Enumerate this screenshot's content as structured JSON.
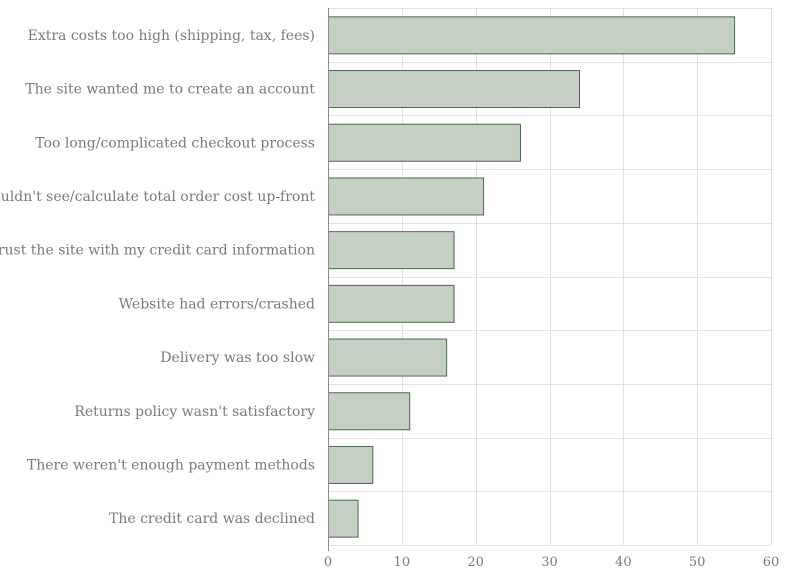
{
  "chart_data": {
    "type": "bar",
    "orientation": "horizontal",
    "categories": [
      "Extra costs too high (shipping, tax, fees)",
      "The site wanted me to create an account",
      "Too long/complicated checkout process",
      "I couldn't see/calculate total order cost up-front",
      "I didn't trust the site with my credit card information",
      "Website had errors/crashed",
      "Delivery was too slow",
      "Returns policy wasn't satisfactory",
      "There weren't enough payment methods",
      "The credit card was declined"
    ],
    "values": [
      55,
      34,
      26,
      21,
      17,
      17,
      16,
      11,
      6,
      4
    ],
    "xlim": [
      0,
      60
    ],
    "xticks": [
      0,
      10,
      20,
      30,
      40,
      50,
      60
    ],
    "title": "",
    "xlabel": "",
    "ylabel": "",
    "grid": true,
    "legend": "none",
    "colors": {
      "bar_fill": "#c5cfc4",
      "bar_stroke": "#4a6a4a",
      "grid": "#e2e2e2",
      "text": "#7a7a7a"
    }
  }
}
